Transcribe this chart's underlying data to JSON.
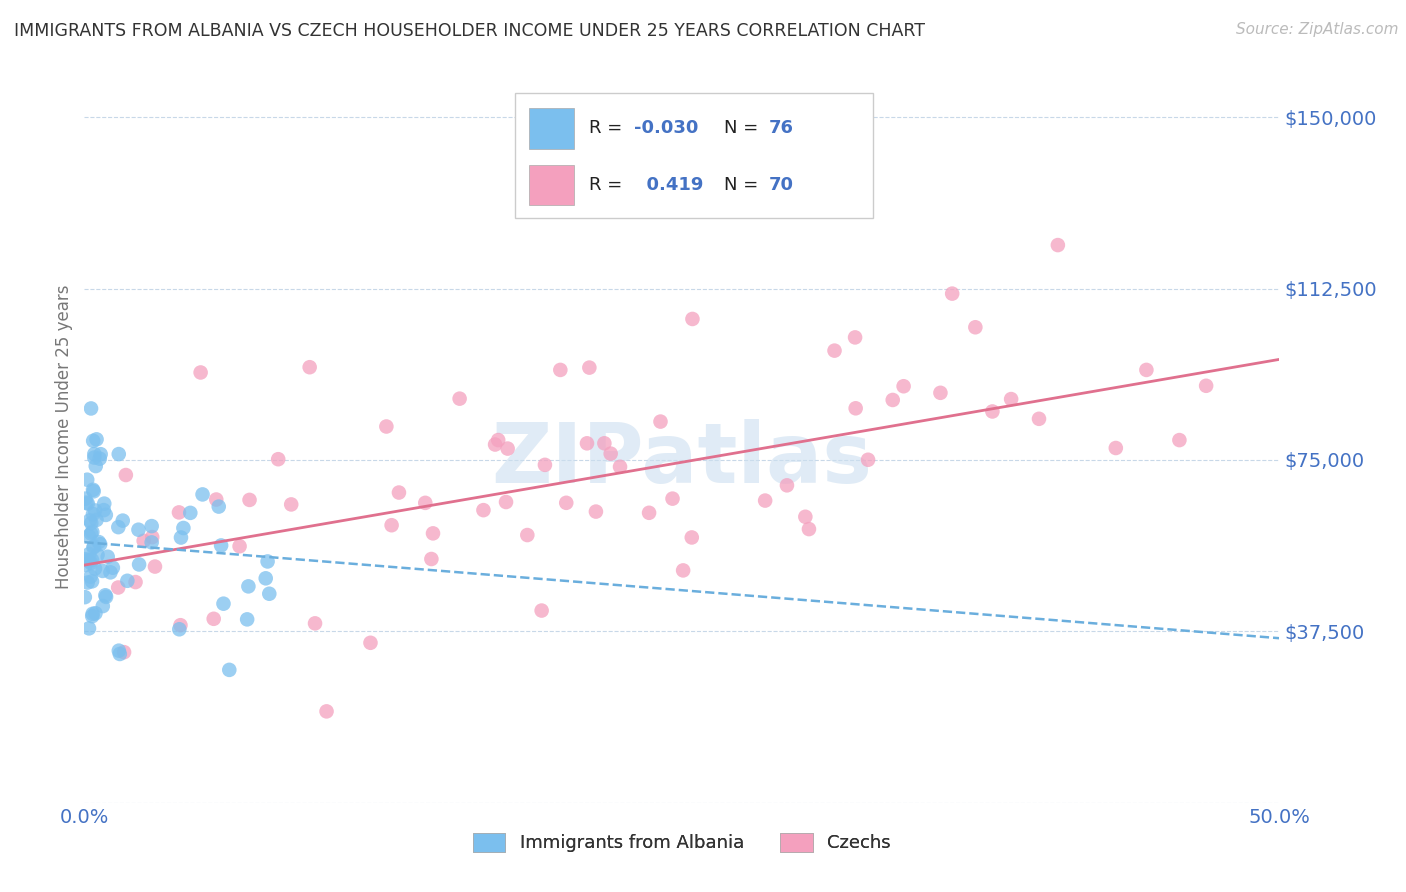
{
  "title": "IMMIGRANTS FROM ALBANIA VS CZECH HOUSEHOLDER INCOME UNDER 25 YEARS CORRELATION CHART",
  "source": "Source: ZipAtlas.com",
  "ylabel": "Householder Income Under 25 years",
  "yticks": [
    0,
    37500,
    75000,
    112500,
    150000
  ],
  "ytick_labels": [
    "",
    "$37,500",
    "$75,000",
    "$112,500",
    "$150,000"
  ],
  "xlim": [
    0.0,
    50.0
  ],
  "ylim": [
    0,
    160000
  ],
  "watermark": "ZIPatlas",
  "albania_color": "#7bbfee",
  "czech_color": "#f4a0be",
  "albania_line_color": "#6aaedd",
  "czech_line_color": "#e0708e",
  "albania_regression_y0": 57000,
  "albania_regression_y1": 36000,
  "czech_regression_y0": 52000,
  "czech_regression_y1": 97000,
  "grid_color": "#c8d8e8",
  "background_color": "#ffffff",
  "title_color": "#333333",
  "tick_label_color": "#4472c4",
  "watermark_color": "#ccdff0"
}
